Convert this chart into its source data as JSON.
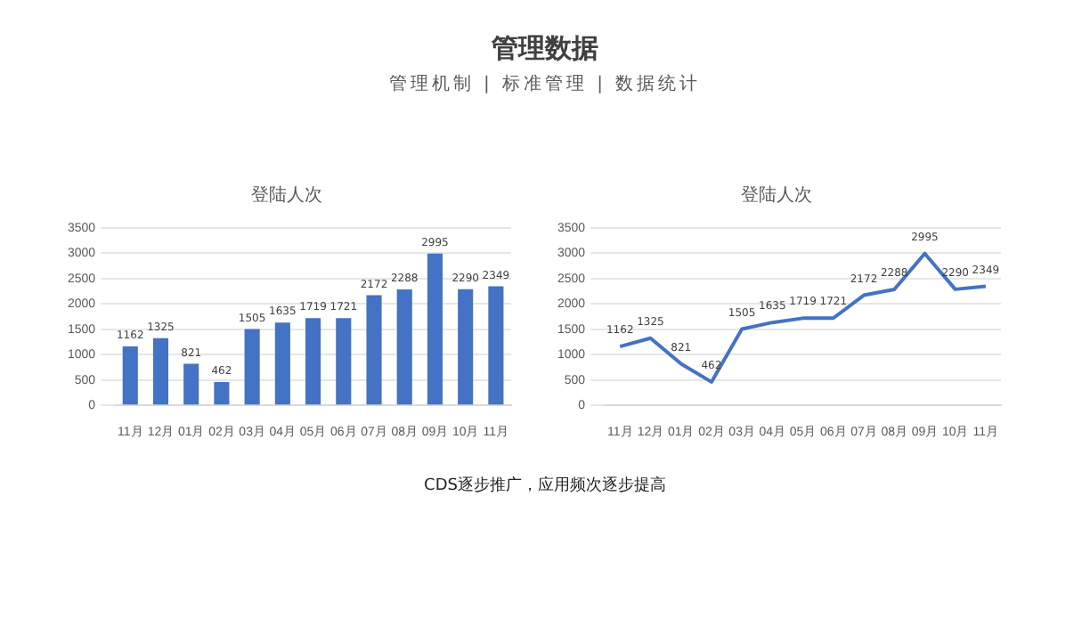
{
  "chart_data": [
    {
      "type": "bar",
      "title": "登陆人次",
      "annotations": [
        "管理数据",
        "管理机制 | 标准管理 | 数据统计"
      ],
      "categories": [
        "11月",
        "12月",
        "01月",
        "02月",
        "03月",
        "04月",
        "05月",
        "06月",
        "07月",
        "08月",
        "09月",
        "10月",
        "11月"
      ],
      "values": [
        1162,
        1325,
        821,
        462,
        1505,
        1635,
        1719,
        1721,
        2172,
        2288,
        2995,
        2290,
        2349
      ],
      "color": "#4472c4",
      "ylim": [
        0,
        3500
      ],
      "yticks": [
        0,
        500,
        1000,
        1500,
        2000,
        2500,
        3000,
        3500
      ],
      "grid": "y",
      "data_labels": true,
      "legend": false
    },
    {
      "type": "line",
      "title": "登陆人次",
      "annotations": [
        "CDS逐步推广，应用频次逐步提高"
      ],
      "categories": [
        "11月",
        "12月",
        "01月",
        "02月",
        "03月",
        "04月",
        "05月",
        "06月",
        "07月",
        "08月",
        "09月",
        "10月",
        "11月"
      ],
      "values": [
        1162,
        1325,
        821,
        462,
        1505,
        1635,
        1719,
        1721,
        2172,
        2288,
        2995,
        2290,
        2349
      ],
      "color": "#4472c4",
      "ylim": [
        0,
        3500
      ],
      "yticks": [
        0,
        500,
        1000,
        1500,
        2000,
        2500,
        3000,
        3500
      ],
      "grid": "y",
      "data_labels": true,
      "legend": false,
      "marker": "none"
    }
  ]
}
